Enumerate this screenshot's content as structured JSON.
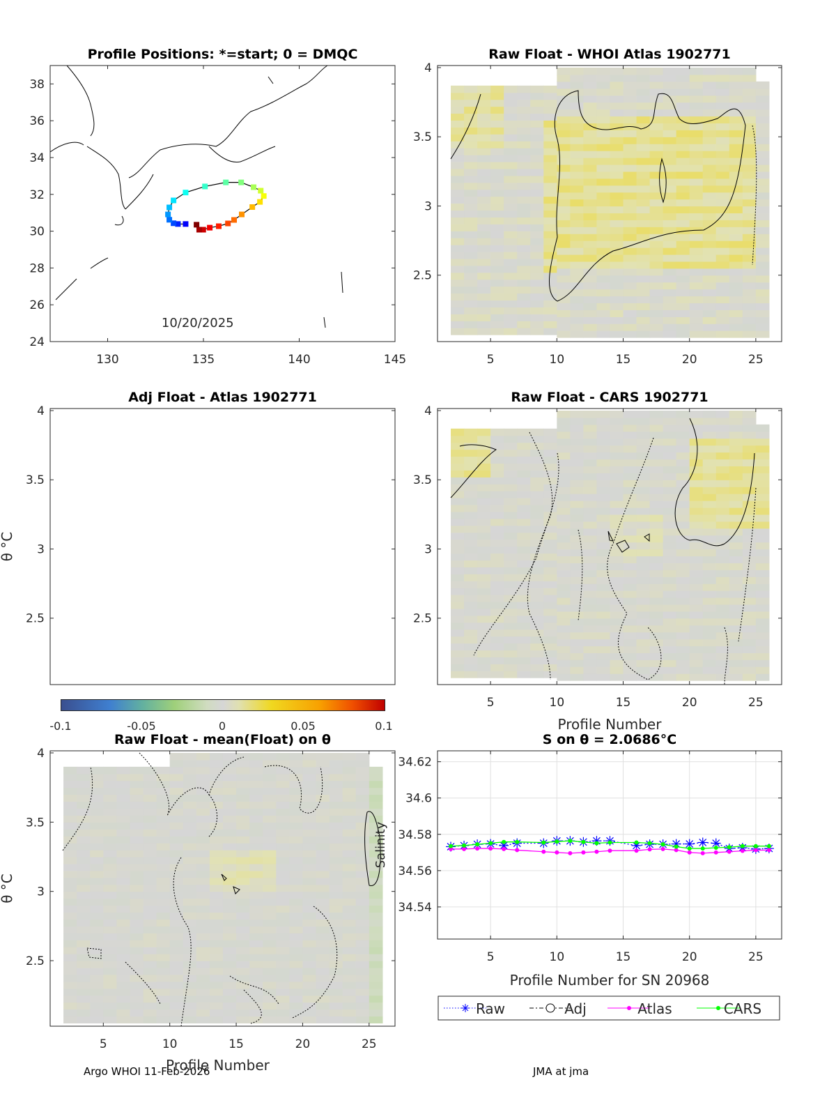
{
  "footer": {
    "left": "Argo WHOI 11-Feb-2026",
    "right": "JMA at jma",
    "overlap_xlabel": "Profile Number"
  },
  "colorbar": {
    "ticks": [
      "-0.1",
      "-0.05",
      "0",
      "0.05",
      "0.1"
    ],
    "range": [
      -0.1,
      0.1
    ]
  },
  "chart_data": [
    {
      "type": "scatter",
      "title": "Profile Positions: *=start; 0 = DMQC",
      "annotation": "10/20/2025",
      "xlim": [
        127,
        145
      ],
      "ylim": [
        24,
        39
      ],
      "xticks": [
        "130",
        "135",
        "140",
        "145"
      ],
      "xtick_values": [
        130,
        135,
        140,
        145
      ],
      "yticks": [
        "24",
        "26",
        "28",
        "30",
        "32",
        "34",
        "36",
        "38"
      ],
      "ytick_values": [
        24,
        26,
        28,
        30,
        32,
        34,
        36,
        38
      ],
      "track_lon": [
        134.07,
        133.67,
        133.44,
        133.22,
        133.15,
        133.22,
        133.44,
        134.07,
        135.08,
        136.17,
        136.97,
        137.62,
        137.99,
        138.15,
        137.95,
        137.55,
        137.0,
        136.6,
        136.28,
        135.8,
        135.33,
        134.99,
        134.78,
        134.64
      ],
      "track_lat": [
        30.39,
        30.39,
        30.43,
        30.62,
        30.91,
        31.29,
        31.67,
        32.1,
        32.43,
        32.65,
        32.65,
        32.39,
        32.2,
        31.91,
        31.59,
        31.31,
        30.91,
        30.61,
        30.42,
        30.27,
        30.19,
        30.08,
        30.08,
        30.35
      ]
    },
    {
      "type": "heatmap",
      "title": "Raw Float - WHOI Atlas  1902771",
      "xticks": [
        "5",
        "10",
        "15",
        "20",
        "25"
      ],
      "xtick_values": [
        5,
        10,
        15,
        20,
        25
      ],
      "yticks": [
        "2.5",
        "3",
        "3.5",
        "4"
      ],
      "ytick_values": [
        2.5,
        3,
        3.5,
        4
      ],
      "xlim": [
        1,
        26.95
      ],
      "ylim": [
        2.02,
        4.015
      ]
    },
    {
      "type": "heatmap",
      "title": "Adj Float - Atlas  1902771",
      "ylabel": "θ °C",
      "yticks": [
        "2.5",
        "3",
        "3.5",
        "4"
      ],
      "ytick_values": [
        2.5,
        3,
        3.5,
        4
      ],
      "xlim": [
        1,
        26.95
      ],
      "ylim": [
        2.02,
        4.015
      ]
    },
    {
      "type": "heatmap",
      "title": "Raw Float - CARS  1902771",
      "xlabel": "Profile Number",
      "xticks": [
        "5",
        "10",
        "15",
        "20",
        "25"
      ],
      "xtick_values": [
        5,
        10,
        15,
        20,
        25
      ],
      "yticks": [
        "2.5",
        "3",
        "3.5",
        "4"
      ],
      "ytick_values": [
        2.5,
        3,
        3.5,
        4
      ],
      "xlim": [
        1,
        26.95
      ],
      "ylim": [
        2.02,
        4.015
      ]
    },
    {
      "type": "heatmap",
      "title": "Raw Float - mean(Float) on θ",
      "ylabel": "θ °C",
      "annotation": "Salinity",
      "xticks": [
        "5",
        "10",
        "15",
        "20",
        "25"
      ],
      "xtick_values": [
        5,
        10,
        15,
        20,
        25
      ],
      "yticks": [
        "2.5",
        "3",
        "3.5",
        "4"
      ],
      "ytick_values": [
        2.5,
        3,
        3.5,
        4
      ],
      "xlim": [
        1,
        26.95
      ],
      "ylim": [
        2.027,
        4.015
      ]
    },
    {
      "type": "line",
      "title": "S on θ = 2.0686°C",
      "xlabel": "Profile Number for SN 20968",
      "xticks": [
        "5",
        "10",
        "15",
        "20",
        "25"
      ],
      "xtick_values": [
        5,
        10,
        15,
        20,
        25
      ],
      "yticks": [
        "34.54",
        "34.56",
        "34.58",
        "34.6",
        "34.62"
      ],
      "ytick_values": [
        34.54,
        34.56,
        34.58,
        34.6,
        34.62
      ],
      "xlim": [
        1,
        26.95
      ],
      "ylim": [
        34.5223,
        34.626
      ],
      "grid": true,
      "legend": [
        "Raw",
        "Adj",
        "Atlas",
        "CARS"
      ],
      "legend_placement": "below",
      "x": [
        2,
        3,
        4,
        5,
        6,
        7,
        9,
        10,
        11,
        12,
        13,
        14,
        16,
        17,
        18,
        19,
        20,
        21,
        22,
        23,
        24,
        25,
        26
      ],
      "series": [
        {
          "name": "Raw",
          "color": "#0000ff",
          "values": [
            34.5732,
            34.5738,
            34.5745,
            34.5747,
            34.5738,
            34.5751,
            34.5751,
            34.5764,
            34.5764,
            34.5758,
            34.5764,
            34.5764,
            34.5738,
            34.5745,
            34.5745,
            34.5747,
            34.5747,
            34.5755,
            34.5751,
            34.5722,
            34.5726,
            34.5719,
            34.5722
          ]
        },
        {
          "name": "Atlas",
          "color": "#ff00ff",
          "values": [
            34.5719,
            34.5719,
            34.5722,
            34.5722,
            34.5719,
            34.5713,
            34.5704,
            34.57,
            34.5696,
            34.57,
            34.5704,
            34.571,
            34.571,
            34.5717,
            34.5719,
            34.5713,
            34.57,
            34.5696,
            34.57,
            34.5704,
            34.5709,
            34.5713,
            34.5713
          ]
        },
        {
          "name": "CARS",
          "color": "#00ff00",
          "values": [
            34.5735,
            34.5738,
            34.5745,
            34.5751,
            34.5758,
            34.5758,
            34.5755,
            34.576,
            34.5764,
            34.5758,
            34.5751,
            34.5755,
            34.5755,
            34.5751,
            34.5745,
            34.5732,
            34.5722,
            34.5722,
            34.5726,
            34.5729,
            34.5735,
            34.5735,
            34.5735
          ]
        }
      ]
    }
  ]
}
